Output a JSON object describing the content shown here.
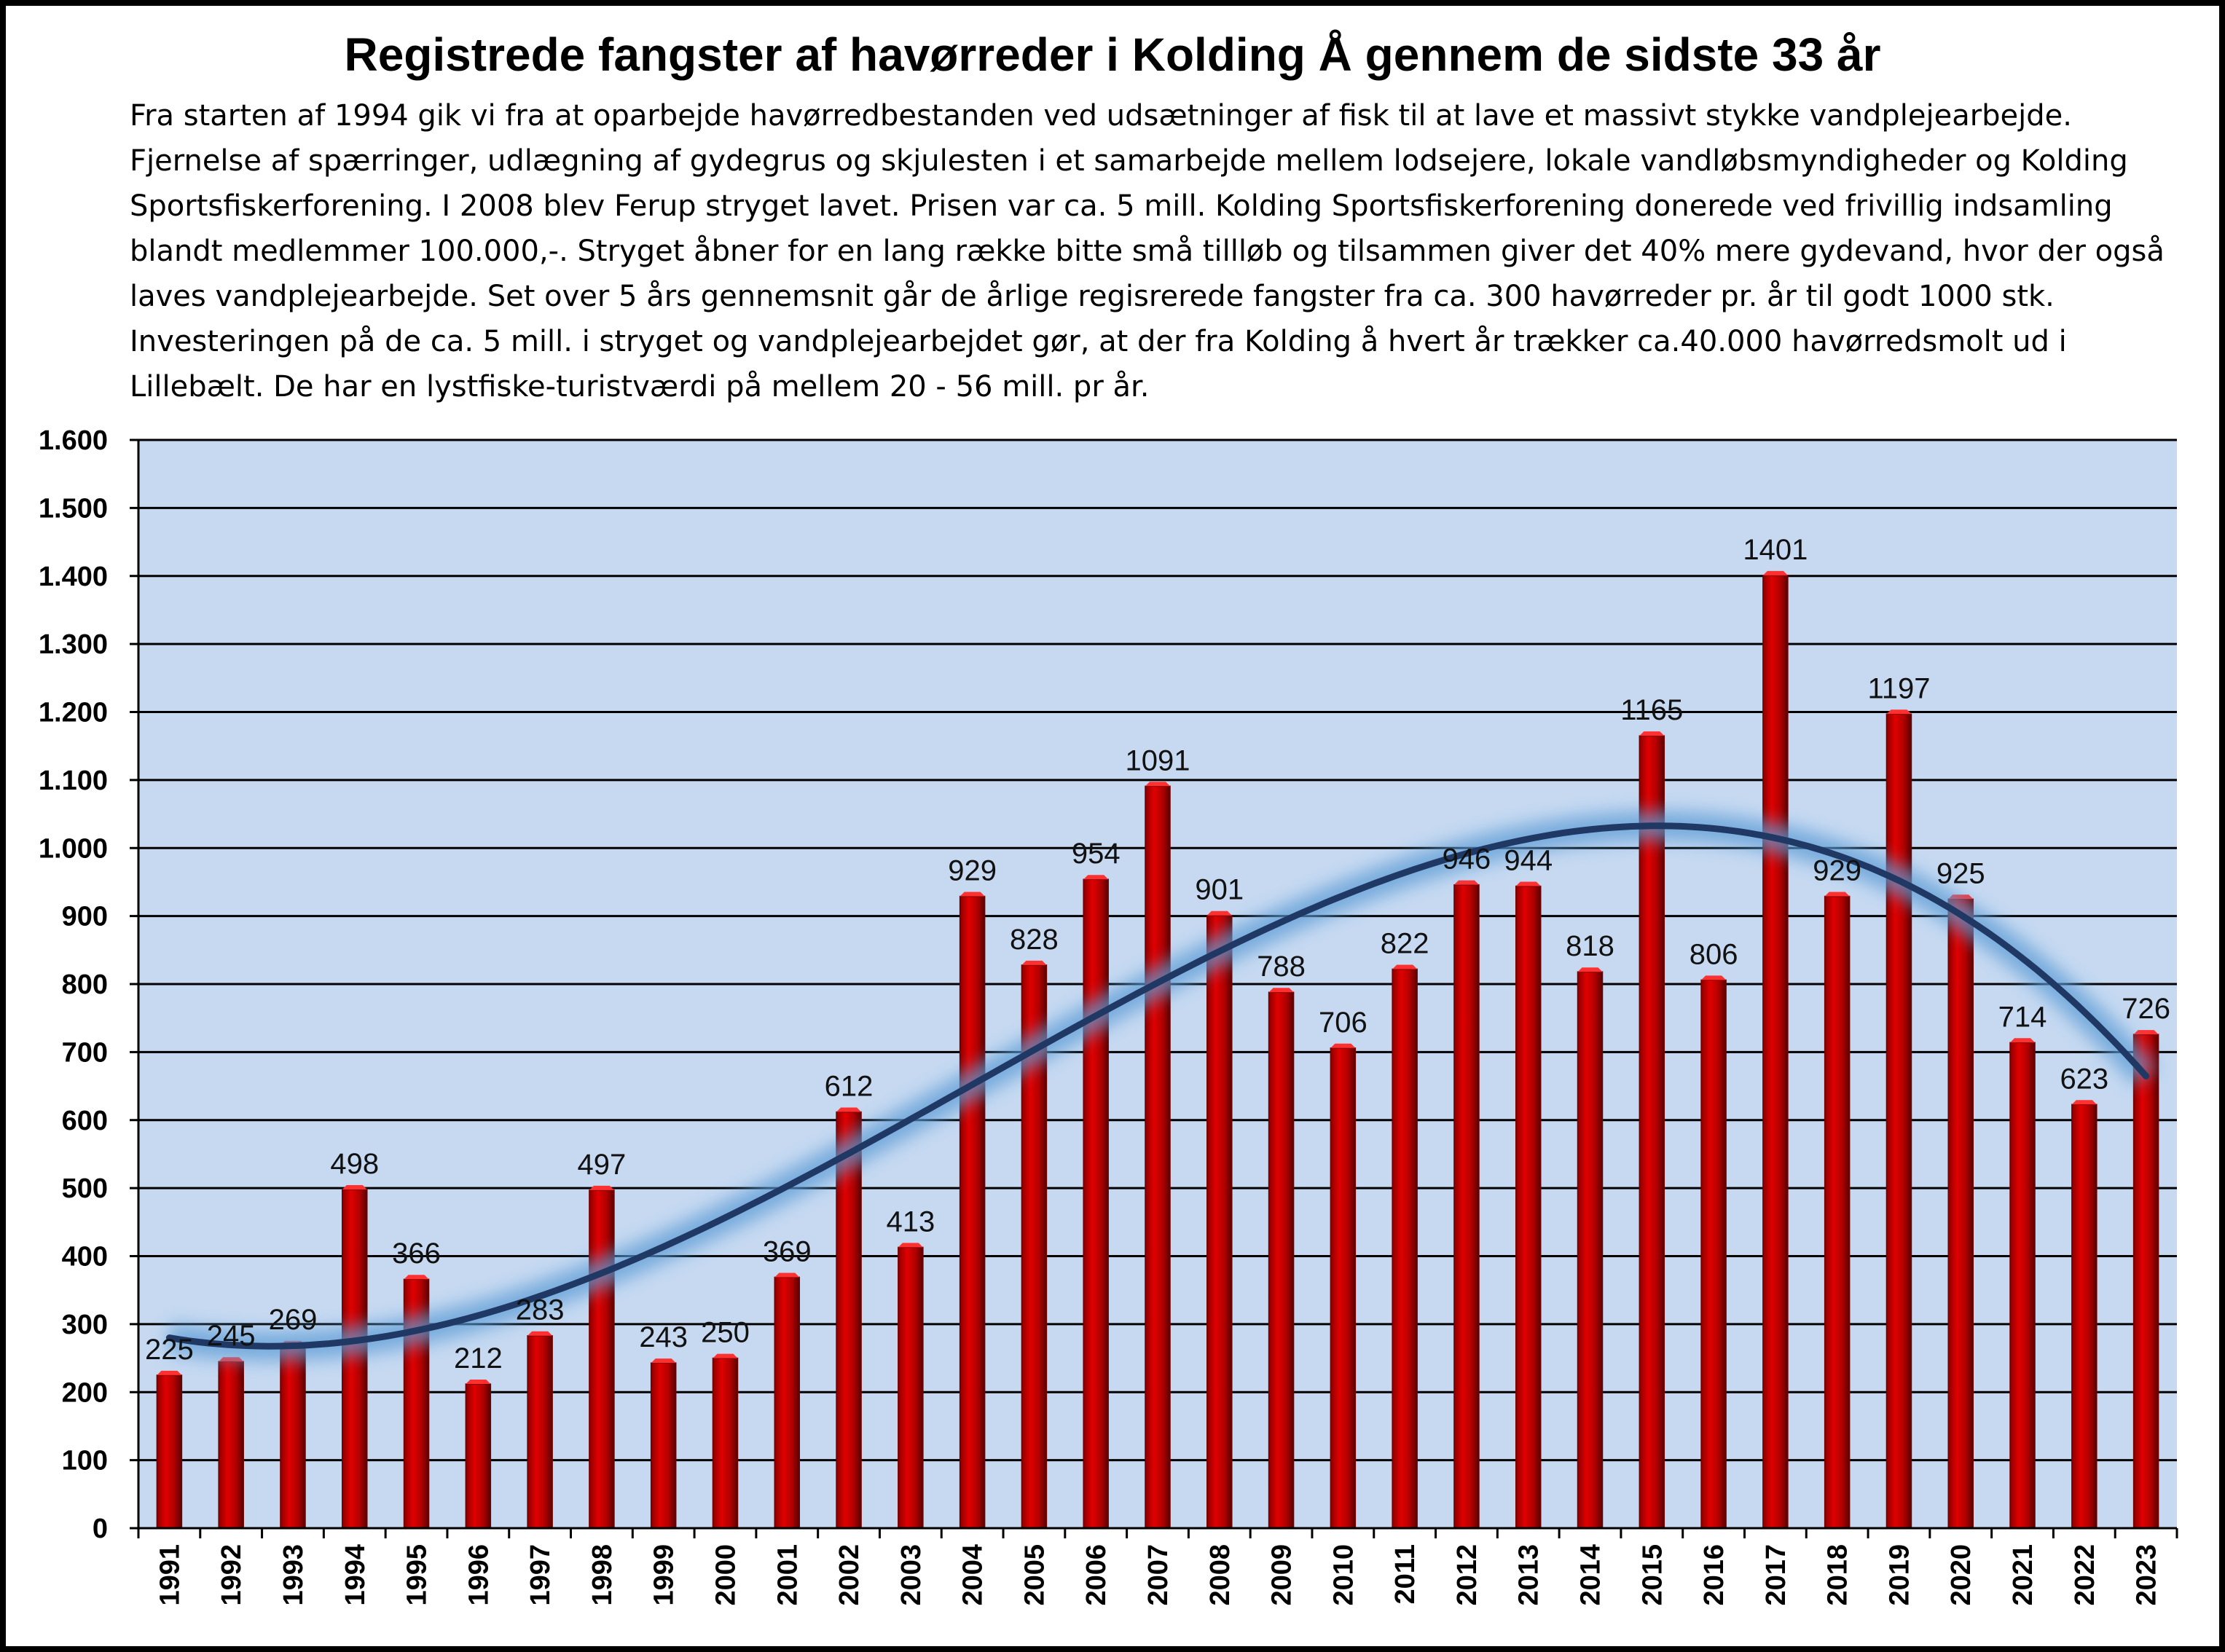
{
  "title": "Registrede fangster af havørreder i Kolding Å gennem de sidste 33 år",
  "description": "Fra starten af 1994 gik vi fra at oparbejde havørredbestanden ved udsætninger af fisk til at lave et massivt stykke vandplejearbejde. Fjernelse af spærringer, udlægning af gydegrus og skjulesten i et samarbejde mellem lodsejere, lokale vandløbsmyndigheder og Kolding Sportsfiskerforening. I 2008 blev Ferup stryget lavet. Prisen var ca. 5 mill. Kolding Sportsfiskerforening donerede ved frivillig indsamling blandt medlemmer 100.000,-. Stryget åbner for en lang række bitte små tillløb og tilsammen giver det 40% mere gydevand, hvor der også laves vandplejearbejde. Set over 5 års gennemsnit går de årlige regisrerede fangster fra ca. 300 havørreder pr. år til godt 1000 stk. Investeringen på de ca. 5 mill. i stryget og vandplejearbejdet gør, at der fra Kolding å hvert år trækker ca.40.000 havørredsmolt ud i Lillebælt. De har en lystfiske-turistværdi på mellem 20 - 56 mill. pr år.",
  "chart_data": {
    "type": "bar",
    "categories": [
      "1991",
      "1992",
      "1993",
      "1994",
      "1995",
      "1996",
      "1997",
      "1998",
      "1999",
      "2000",
      "2001",
      "2002",
      "2003",
      "2004",
      "2005",
      "2006",
      "2007",
      "2008",
      "2009",
      "2010",
      "2011",
      "2012",
      "2013",
      "2014",
      "2015",
      "2016",
      "2017",
      "2018",
      "2019",
      "2020",
      "2021",
      "2022",
      "2023"
    ],
    "values": [
      225,
      245,
      269,
      498,
      366,
      212,
      283,
      497,
      243,
      250,
      369,
      612,
      413,
      929,
      828,
      954,
      1091,
      901,
      788,
      706,
      822,
      946,
      944,
      818,
      1165,
      806,
      1401,
      929,
      1197,
      925,
      714,
      623,
      726
    ],
    "data_labels": [
      "225",
      "245",
      "269",
      "498",
      "366",
      "212",
      "283",
      "497",
      "243",
      "250",
      "369",
      "612",
      "413",
      "929",
      "828",
      "954",
      "1091",
      "901",
      "788",
      "706",
      "822",
      "946",
      "944",
      "818",
      "1165",
      "806",
      "1401",
      "929",
      "1197",
      "925",
      "714",
      "623",
      "726"
    ],
    "ylim": [
      0,
      1600
    ],
    "yticks": [
      0,
      100,
      200,
      300,
      400,
      500,
      600,
      700,
      800,
      900,
      1000,
      1100,
      1200,
      1300,
      1400,
      1500,
      1600
    ],
    "ytick_labels": [
      "0",
      "100",
      "200",
      "300",
      "400",
      "500",
      "600",
      "700",
      "800",
      "900",
      "1.000",
      "1.100",
      "1.200",
      "1.300",
      "1.400",
      "1.500",
      "1.600"
    ],
    "grid": true,
    "trendline": {
      "type": "polynomial"
    },
    "colors": {
      "plot_background": "#c6d9f1",
      "bar": "#c00000",
      "bar_dark": "#6e0000",
      "grid": "#000000",
      "trend": "#1f3864",
      "trend_glow": "#5b9bd5"
    }
  }
}
